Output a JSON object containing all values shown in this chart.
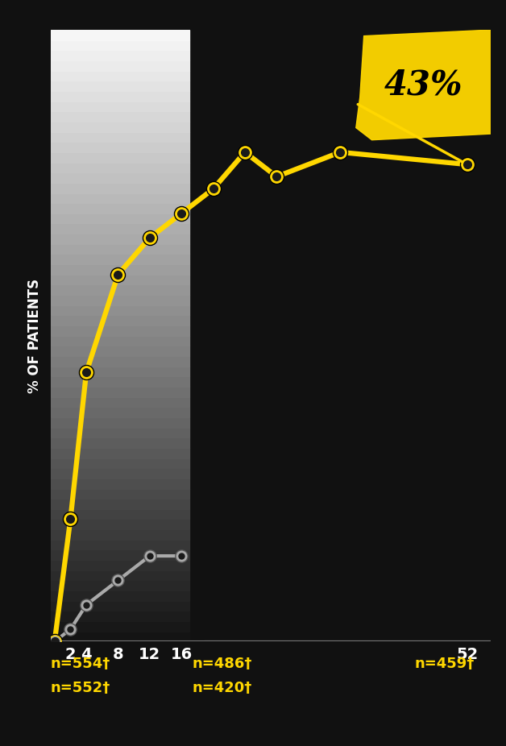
{
  "yellow_x": [
    0,
    2,
    4,
    8,
    12,
    16,
    20,
    24,
    28,
    36,
    52
  ],
  "yellow_y": [
    0,
    10,
    22,
    30,
    33,
    35,
    37,
    40,
    38,
    40,
    39
  ],
  "gray_x": [
    0,
    2,
    4,
    8,
    12,
    16
  ],
  "gray_y": [
    0,
    1,
    3,
    5,
    7,
    7
  ],
  "yellow_color": "#FFD700",
  "gray_color": "#AAAAAA",
  "bg_color": "#111111",
  "ylabel": "% OF PATIENTS",
  "ylim": [
    0,
    50
  ],
  "xlim": [
    -0.5,
    55
  ],
  "annotation_43": "43%",
  "solid_cutoff_idx": 5,
  "gradient_x_right": 17.0,
  "xtick_positions": [
    2,
    4,
    8,
    12,
    16,
    52
  ],
  "xtick_labels": [
    "2",
    "4",
    "8",
    "12",
    "16",
    "52"
  ]
}
